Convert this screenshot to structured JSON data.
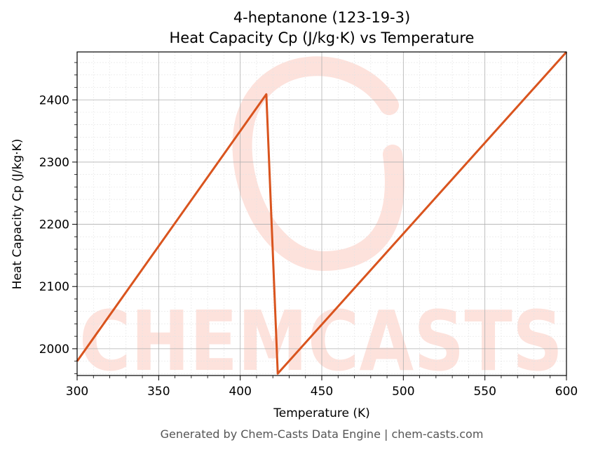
{
  "chart_data": {
    "type": "line",
    "title": "4-heptanone (123-19-3)",
    "subtitle": "Heat Capacity Cp (J/kg·K) vs Temperature",
    "xlabel": "Temperature (K)",
    "ylabel": "Heat Capacity Cp (J/kg·K)",
    "xlim": [
      300,
      600
    ],
    "ylim": [
      1957,
      2477
    ],
    "xticks": [
      300,
      350,
      400,
      450,
      500,
      550,
      600
    ],
    "yticks": [
      2000,
      2100,
      2200,
      2300,
      2400
    ],
    "grid": true,
    "series": [
      {
        "color": "#d9541e",
        "x": [
          300,
          416,
          423,
          600
        ],
        "y": [
          1980,
          2409,
          1960,
          2477
        ]
      }
    ]
  },
  "watermark": {
    "text": "CHEMCASTS",
    "color": "#fde2dc"
  },
  "footer": "Generated by Chem-Casts Data Engine | chem-casts.com"
}
